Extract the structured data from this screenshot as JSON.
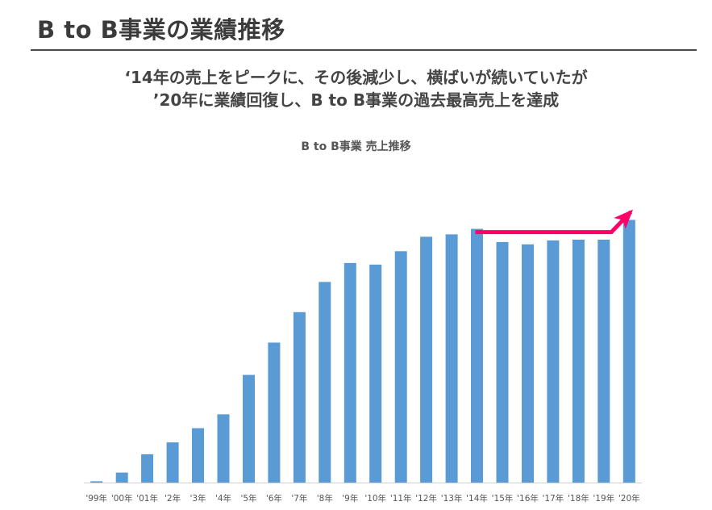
{
  "page": {
    "title": "B to B事業の業績推移",
    "headline_line1": "‘14年の売上をピークに、その後減少し、横ばいが続いていたが",
    "headline_line2": "’20年に業績回復し、B to B事業の過去最高売上を達成"
  },
  "colors": {
    "bar": "#5b9bd5",
    "arrow": "#ff0066",
    "axis": "#d0d0d0"
  },
  "chart_data": {
    "type": "bar",
    "title": "B to B事業 売上推移",
    "xlabel": "",
    "ylabel": "",
    "categories": [
      "'99年",
      "'00年",
      "'01年",
      "'2年",
      "'3年",
      "'4年",
      "'5年",
      "'6年",
      "'7年",
      "'8年",
      "'9年",
      "'10年",
      "'11年",
      "'12年",
      "'13年",
      "'14年",
      "'15年",
      "'16年",
      "'17年",
      "'18年",
      "'19年",
      "'20年"
    ],
    "series": [
      {
        "values": [
          0.5,
          3.8,
          10.8,
          15.3,
          20.7,
          26.0,
          41.0,
          53.3,
          64.9,
          76.4,
          83.6,
          83.0,
          88.1,
          93.6,
          94.5,
          96.6,
          91.6,
          90.7,
          92.2,
          92.5,
          92.5,
          100.0
        ]
      }
    ],
    "ylim": [
      0,
      110
    ],
    "grid": false,
    "legend": "none",
    "annotations": [
      {
        "type": "arrow",
        "from_category": "'14年",
        "to_category": "'20年",
        "color": "#ff0066"
      }
    ]
  }
}
